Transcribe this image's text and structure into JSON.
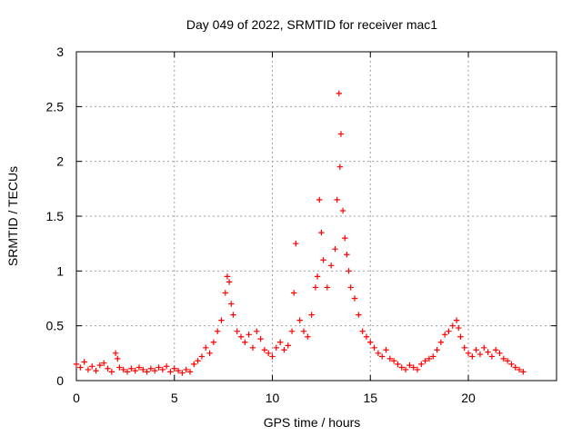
{
  "chart_data": {
    "type": "scatter",
    "title": "Day 049 of 2022, SRMTID for receiver mac1",
    "xlabel": "GPS time / hours",
    "ylabel": "SRMTID / TECUs",
    "xlim": [
      0,
      24.5
    ],
    "ylim": [
      0,
      3
    ],
    "xticks": [
      0,
      5,
      10,
      15,
      20
    ],
    "xtick_labels": [
      "0",
      "5",
      "10",
      "15",
      "20"
    ],
    "yticks": [
      0,
      0.5,
      1,
      1.5,
      2,
      2.5,
      3
    ],
    "ytick_labels": [
      "0",
      "0.5",
      "1",
      "1.5",
      "2",
      "2.5",
      "3"
    ],
    "grid": true,
    "marker": "+",
    "series": [
      {
        "name": "mac1",
        "color": "#ff0000",
        "x": [
          0.0,
          0.2,
          0.4,
          0.6,
          0.8,
          1.0,
          1.2,
          1.4,
          1.6,
          1.8,
          2.0,
          2.1,
          2.2,
          2.4,
          2.6,
          2.8,
          3.0,
          3.2,
          3.4,
          3.6,
          3.8,
          4.0,
          4.2,
          4.4,
          4.6,
          4.8,
          5.0,
          5.2,
          5.4,
          5.6,
          5.8,
          6.0,
          6.2,
          6.4,
          6.6,
          6.8,
          7.0,
          7.2,
          7.4,
          7.6,
          7.7,
          7.8,
          7.9,
          8.0,
          8.2,
          8.4,
          8.6,
          8.8,
          9.0,
          9.2,
          9.4,
          9.6,
          9.8,
          10.0,
          10.2,
          10.4,
          10.6,
          10.8,
          11.0,
          11.1,
          11.2,
          11.4,
          11.6,
          11.8,
          12.0,
          12.2,
          12.3,
          12.4,
          12.5,
          12.6,
          12.8,
          13.0,
          13.2,
          13.3,
          13.4,
          13.45,
          13.5,
          13.6,
          13.7,
          13.8,
          13.9,
          14.0,
          14.2,
          14.4,
          14.6,
          14.8,
          15.0,
          15.2,
          15.4,
          15.6,
          15.8,
          16.0,
          16.2,
          16.4,
          16.6,
          16.8,
          17.0,
          17.2,
          17.4,
          17.6,
          17.8,
          18.0,
          18.2,
          18.4,
          18.6,
          18.8,
          19.0,
          19.2,
          19.4,
          19.5,
          19.6,
          19.8,
          20.0,
          20.2,
          20.4,
          20.6,
          20.8,
          21.0,
          21.2,
          21.4,
          21.6,
          21.8,
          22.0,
          22.2,
          22.4,
          22.6,
          22.8
        ],
        "y": [
          0.15,
          0.12,
          0.17,
          0.1,
          0.13,
          0.09,
          0.14,
          0.16,
          0.11,
          0.08,
          0.25,
          0.2,
          0.12,
          0.1,
          0.08,
          0.11,
          0.09,
          0.12,
          0.1,
          0.08,
          0.11,
          0.09,
          0.12,
          0.1,
          0.13,
          0.08,
          0.11,
          0.09,
          0.07,
          0.1,
          0.08,
          0.15,
          0.18,
          0.22,
          0.3,
          0.25,
          0.35,
          0.45,
          0.55,
          0.8,
          0.95,
          0.9,
          0.7,
          0.6,
          0.45,
          0.4,
          0.35,
          0.42,
          0.3,
          0.45,
          0.38,
          0.28,
          0.25,
          0.22,
          0.3,
          0.35,
          0.28,
          0.32,
          0.45,
          0.8,
          1.25,
          0.55,
          0.45,
          0.4,
          0.6,
          0.85,
          0.95,
          1.65,
          1.35,
          1.1,
          0.85,
          1.05,
          1.2,
          1.65,
          2.62,
          1.95,
          2.25,
          1.55,
          1.3,
          1.15,
          1.0,
          0.85,
          0.75,
          0.6,
          0.45,
          0.4,
          0.35,
          0.3,
          0.25,
          0.22,
          0.28,
          0.2,
          0.18,
          0.15,
          0.12,
          0.1,
          0.14,
          0.12,
          0.1,
          0.15,
          0.18,
          0.2,
          0.22,
          0.28,
          0.35,
          0.42,
          0.45,
          0.5,
          0.55,
          0.48,
          0.4,
          0.3,
          0.25,
          0.22,
          0.28,
          0.24,
          0.3,
          0.26,
          0.22,
          0.28,
          0.25,
          0.2,
          0.18,
          0.15,
          0.12,
          0.1,
          0.08
        ]
      }
    ]
  }
}
